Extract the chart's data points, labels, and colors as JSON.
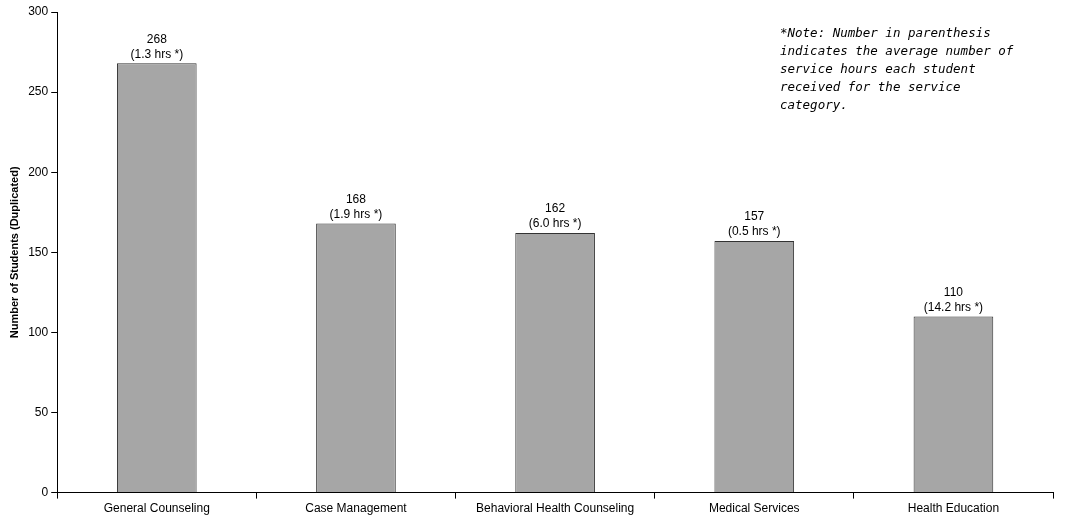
{
  "chart_data": {
    "type": "bar",
    "ylabel": "Number of Students (Duplicated)",
    "categories": [
      "General Counseling",
      "Case Management",
      "Behavioral Health Counseling",
      "Medical Services",
      "Health Education"
    ],
    "values": [
      268,
      168,
      162,
      157,
      110
    ],
    "color": "#a6a6a6",
    "value_labels": [
      "268\n(1.3 hrs *)",
      "168\n(1.9 hrs *)",
      "162\n(6.0 hrs *)",
      "157\n(0.5 hrs *)",
      "110\n(14.2 hrs *)"
    ],
    "ylim": [
      0,
      300
    ],
    "yticks": [
      0,
      50,
      100,
      150,
      200,
      250,
      300
    ],
    "annotations": [
      "*Note: Number in parenthesis indicates the average number of service hours each student received for the service category."
    ],
    "legend": false
  }
}
